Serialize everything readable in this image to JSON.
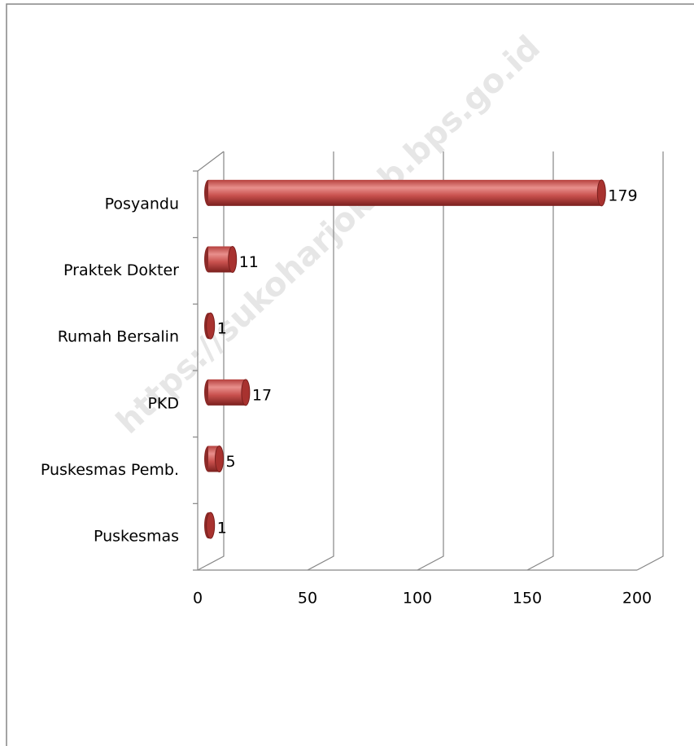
{
  "chart_data": {
    "type": "bar",
    "orientation": "horizontal",
    "three_d": true,
    "categories": [
      "Posyandu",
      "Praktek Dokter",
      "Rumah Bersalin",
      "PKD",
      "Puskesmas Pemb.",
      "Puskesmas"
    ],
    "values": [
      179,
      11,
      1,
      17,
      5,
      1
    ],
    "color": "#c0504d",
    "xlim": [
      0,
      200
    ],
    "xticks": [
      0,
      50,
      100,
      150,
      200
    ],
    "grid": true,
    "watermark": "https://sukoharjokab.bps.go.id"
  }
}
